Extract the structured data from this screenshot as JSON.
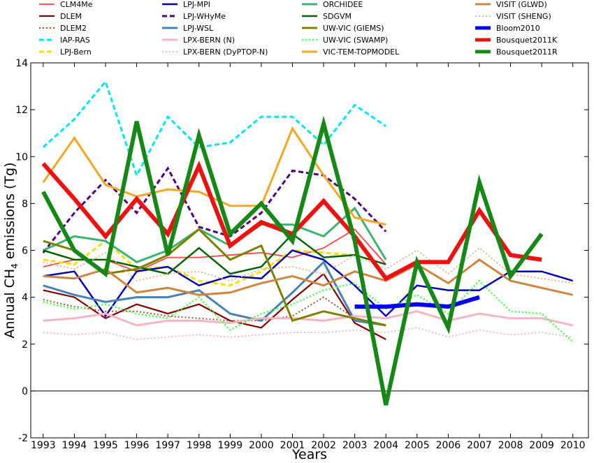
{
  "chart_data": {
    "type": "line",
    "xlabel": "Years",
    "ylabel_main": "Annual CH",
    "ylabel_sub": "4",
    "ylabel_rest": " emissions (Tg)",
    "xlim": [
      1992.6,
      2010.5
    ],
    "ylim": [
      -2,
      14
    ],
    "x_ticks": [
      1993,
      1994,
      1995,
      1996,
      1997,
      1998,
      1999,
      2000,
      2001,
      2002,
      2003,
      2004,
      2005,
      2006,
      2007,
      2008,
      2009,
      2010
    ],
    "y_ticks": [
      -2,
      0,
      2,
      4,
      6,
      8,
      10,
      12,
      14
    ],
    "zero_line": true,
    "grid": false,
    "legend_position": "top",
    "series": [
      {
        "name": "CLM4Me",
        "color": "#ff4444",
        "width": 1.8,
        "dash": "solid",
        "x": [
          1993,
          1994,
          1995,
          1996,
          1997,
          1998,
          1999,
          2000,
          2001,
          2002,
          2003,
          2004
        ],
        "y": [
          5.3,
          5.6,
          5.6,
          5.1,
          5.7,
          5.7,
          5.8,
          5.9,
          5.7,
          6.1,
          6.9,
          5.4
        ]
      },
      {
        "name": "DLEM",
        "color": "#800000",
        "width": 2.2,
        "dash": "solid",
        "x": [
          1993,
          1994,
          1995,
          1996,
          1997,
          1998,
          1999,
          2000,
          2001,
          2002,
          2003,
          2004
        ],
        "y": [
          4.3,
          4.0,
          3.1,
          3.7,
          3.3,
          3.7,
          3.0,
          2.7,
          3.9,
          5.0,
          2.9,
          2.2
        ]
      },
      {
        "name": "DLEM2",
        "color": "#a0522d",
        "width": 2,
        "dash": "dot",
        "x": [
          1993,
          1994,
          1995,
          1996,
          1997,
          1998,
          1999,
          2000,
          2001,
          2002,
          2003,
          2004
        ],
        "y": [
          3.9,
          3.6,
          3.4,
          3.4,
          3.2,
          3.1,
          3.0,
          3.0,
          3.2,
          4.0,
          3.1,
          2.8
        ]
      },
      {
        "name": "IAP-RAS",
        "color": "#00e5ee",
        "width": 3,
        "dash": "dash",
        "x": [
          1993,
          1994,
          1995,
          1996,
          1997,
          1998,
          1999,
          2000,
          2001,
          2002,
          2003,
          2004
        ],
        "y": [
          10.4,
          11.6,
          13.2,
          9.2,
          11.7,
          10.4,
          10.6,
          11.7,
          11.7,
          10.5,
          12.2,
          11.3
        ]
      },
      {
        "name": "LPJ-Bern",
        "color": "#ffdd00",
        "width": 3,
        "dash": "dash",
        "x": [
          1993,
          1994,
          1995,
          1996,
          1997,
          1998,
          1999,
          2000,
          2001,
          2002,
          2003
        ],
        "y": [
          5.6,
          5.4,
          6.4,
          5.2,
          5.3,
          4.7,
          4.5,
          5.1,
          6.0,
          5.9,
          5.8
        ]
      },
      {
        "name": "LPJ-MPI",
        "color": "#0000b0",
        "width": 2.5,
        "dash": "solid",
        "x": [
          1993,
          1994,
          1995,
          1996,
          1997,
          1998,
          1999,
          2000,
          2001,
          2002,
          2003,
          2004,
          2005,
          2006,
          2007,
          2008,
          2009,
          2010
        ],
        "y": [
          4.9,
          5.1,
          3.2,
          5.1,
          5.3,
          4.5,
          4.9,
          4.8,
          6.0,
          5.6,
          4.5,
          3.2,
          4.5,
          4.3,
          4.3,
          5.1,
          5.1,
          4.7
        ]
      },
      {
        "name": "LPJ-WHyMe",
        "color": "#4b0082",
        "width": 3,
        "dash": "dash",
        "x": [
          1993,
          1994,
          1995,
          1996,
          1997,
          1998,
          1999,
          2000,
          2001,
          2002,
          2003,
          2004
        ],
        "y": [
          5.9,
          7.6,
          9.0,
          7.6,
          9.5,
          7.0,
          6.6,
          7.6,
          9.4,
          9.2,
          8.2,
          6.8
        ]
      },
      {
        "name": "LPJ-WSL",
        "color": "#4682b4",
        "width": 3,
        "dash": "solid",
        "x": [
          1993,
          1994,
          1995,
          1996,
          1997,
          1998,
          1999,
          2000,
          2001,
          2002,
          2003,
          2004
        ],
        "y": [
          4.5,
          4.1,
          3.8,
          4.0,
          4.0,
          4.3,
          3.3,
          3.0,
          4.2,
          5.5,
          3.0,
          2.8
        ]
      },
      {
        "name": "LPX-BERN (N)",
        "color": "#f4b6c2",
        "width": 3,
        "dash": "solid",
        "x": [
          1993,
          1994,
          1995,
          1996,
          1997,
          1998,
          1999,
          2000,
          2001,
          2002,
          2003,
          2004,
          2005,
          2006,
          2007,
          2008,
          2009,
          2010
        ],
        "y": [
          3.0,
          3.1,
          3.3,
          2.8,
          3.0,
          3.0,
          2.9,
          3.1,
          3.1,
          3.0,
          3.2,
          3.1,
          3.4,
          3.0,
          3.3,
          3.1,
          3.1,
          2.8
        ]
      },
      {
        "name": "LPX-BERN (DyPTOP-N)",
        "color": "#f4b6c2",
        "width": 2,
        "dash": "dot",
        "x": [
          1993,
          1994,
          1995,
          1996,
          1997,
          1998,
          1999,
          2000,
          2001,
          2002,
          2003,
          2004,
          2005,
          2006,
          2007,
          2008,
          2009,
          2010
        ],
        "y": [
          2.5,
          2.4,
          2.5,
          2.2,
          2.3,
          2.4,
          2.3,
          2.4,
          2.5,
          2.5,
          2.6,
          2.5,
          2.7,
          2.3,
          2.6,
          2.4,
          2.5,
          2.3
        ]
      },
      {
        "name": "ORCHIDEE",
        "color": "#3cb371",
        "width": 3,
        "dash": "solid",
        "x": [
          1993,
          1994,
          1995,
          1996,
          1997,
          1998,
          1999,
          2000,
          2001,
          2002,
          2003,
          2004
        ],
        "y": [
          6.0,
          6.6,
          6.4,
          5.5,
          6.0,
          6.9,
          6.2,
          7.1,
          7.1,
          6.6,
          7.8,
          5.6
        ]
      },
      {
        "name": "SDGVM",
        "color": "#006400",
        "width": 2.5,
        "dash": "solid",
        "x": [
          1993,
          1994,
          1995,
          1996,
          1997,
          1998,
          1999,
          2000,
          2001,
          2002,
          2003,
          2004
        ],
        "y": [
          6.0,
          5.6,
          5.6,
          5.3,
          5.0,
          6.1,
          5.0,
          5.3,
          6.7,
          5.7,
          5.8,
          5.4
        ]
      },
      {
        "name": "UW-VIC (GIEMS)",
        "color": "#808000",
        "width": 3,
        "dash": "solid",
        "x": [
          1993,
          1994,
          1995,
          1996,
          1997,
          1998,
          1999,
          2000,
          2001,
          2002,
          2003,
          2004
        ],
        "y": [
          6.4,
          6.0,
          5.0,
          5.2,
          5.8,
          6.9,
          5.6,
          6.2,
          3.0,
          3.4,
          3.1,
          2.8
        ]
      },
      {
        "name": "UW-VIC (SWAMP)",
        "color": "#44ff44",
        "width": 2.5,
        "dash": "dot",
        "x": [
          1993,
          1994,
          1995,
          1996,
          1997,
          1998,
          1999,
          2000,
          2001,
          2002,
          2003,
          2004,
          2005,
          2006,
          2007,
          2008,
          2009,
          2010
        ],
        "y": [
          3.8,
          3.5,
          3.7,
          3.3,
          3.1,
          4.0,
          2.6,
          3.3,
          3.7,
          4.3,
          4.6,
          3.5,
          4.1,
          3.3,
          4.7,
          3.4,
          3.3,
          2.1
        ]
      },
      {
        "name": "VIC-TEM-TOPMODEL",
        "color": "#f5a623",
        "width": 3,
        "dash": "solid",
        "x": [
          1993,
          1994,
          1995,
          1996,
          1997,
          1998,
          1999,
          2000,
          2001,
          2002,
          2003,
          2004
        ],
        "y": [
          8.9,
          10.8,
          8.8,
          8.3,
          8.6,
          8.5,
          7.9,
          7.9,
          11.2,
          9.2,
          7.4,
          7.1
        ]
      },
      {
        "name": "VISIT (GLWD)",
        "color": "#cd853f",
        "width": 3,
        "dash": "solid",
        "x": [
          1993,
          1994,
          1995,
          1996,
          1997,
          1998,
          1999,
          2000,
          2001,
          2002,
          2003,
          2004,
          2005,
          2006,
          2007,
          2008,
          2009,
          2010
        ],
        "y": [
          4.9,
          4.8,
          5.2,
          4.2,
          4.4,
          4.1,
          4.2,
          4.6,
          4.9,
          4.5,
          5.1,
          4.7,
          5.4,
          4.6,
          5.6,
          4.7,
          4.4,
          4.1
        ]
      },
      {
        "name": "VISIT (SHENG)",
        "color": "#deb887",
        "width": 2,
        "dash": "dot",
        "x": [
          1993,
          1994,
          1995,
          1996,
          1997,
          1998,
          1999,
          2000,
          2001,
          2002,
          2003,
          2004,
          2005,
          2006,
          2007,
          2008,
          2009,
          2010
        ],
        "y": [
          5.5,
          5.2,
          5.9,
          4.7,
          5.0,
          5.1,
          4.7,
          5.2,
          5.3,
          5.0,
          5.8,
          5.2,
          6.0,
          5.0,
          6.1,
          5.0,
          4.8,
          4.6
        ]
      },
      {
        "name": "Bloom2010",
        "color": "#0000ee",
        "width": 6,
        "dash": "solid",
        "x": [
          2003,
          2004,
          2005,
          2006,
          2007
        ],
        "y": [
          3.6,
          3.6,
          3.7,
          3.6,
          4.0
        ]
      },
      {
        "name": "Bousquet2011K",
        "color": "#ee1111",
        "width": 6,
        "dash": "solid",
        "x": [
          1993,
          1994,
          1995,
          1996,
          1997,
          1998,
          1999,
          2000,
          2001,
          2002,
          2003,
          2004,
          2005,
          2006,
          2007,
          2008,
          2009
        ],
        "y": [
          9.7,
          8.2,
          6.6,
          8.2,
          6.7,
          9.6,
          6.2,
          7.2,
          6.7,
          8.1,
          6.6,
          4.8,
          5.5,
          5.5,
          7.7,
          5.8,
          5.6
        ]
      },
      {
        "name": "Bousquet2011R",
        "color": "#168816",
        "width": 6,
        "dash": "solid",
        "x": [
          1993,
          1994,
          1995,
          1996,
          1997,
          1998,
          1999,
          2000,
          2001,
          2002,
          2003,
          2004,
          2005,
          2006,
          2007,
          2008,
          2009
        ],
        "y": [
          8.5,
          6.0,
          5.0,
          11.5,
          5.8,
          10.9,
          6.7,
          8.0,
          6.4,
          11.4,
          6.4,
          -0.6,
          5.5,
          2.7,
          8.9,
          4.9,
          6.7
        ]
      }
    ]
  }
}
